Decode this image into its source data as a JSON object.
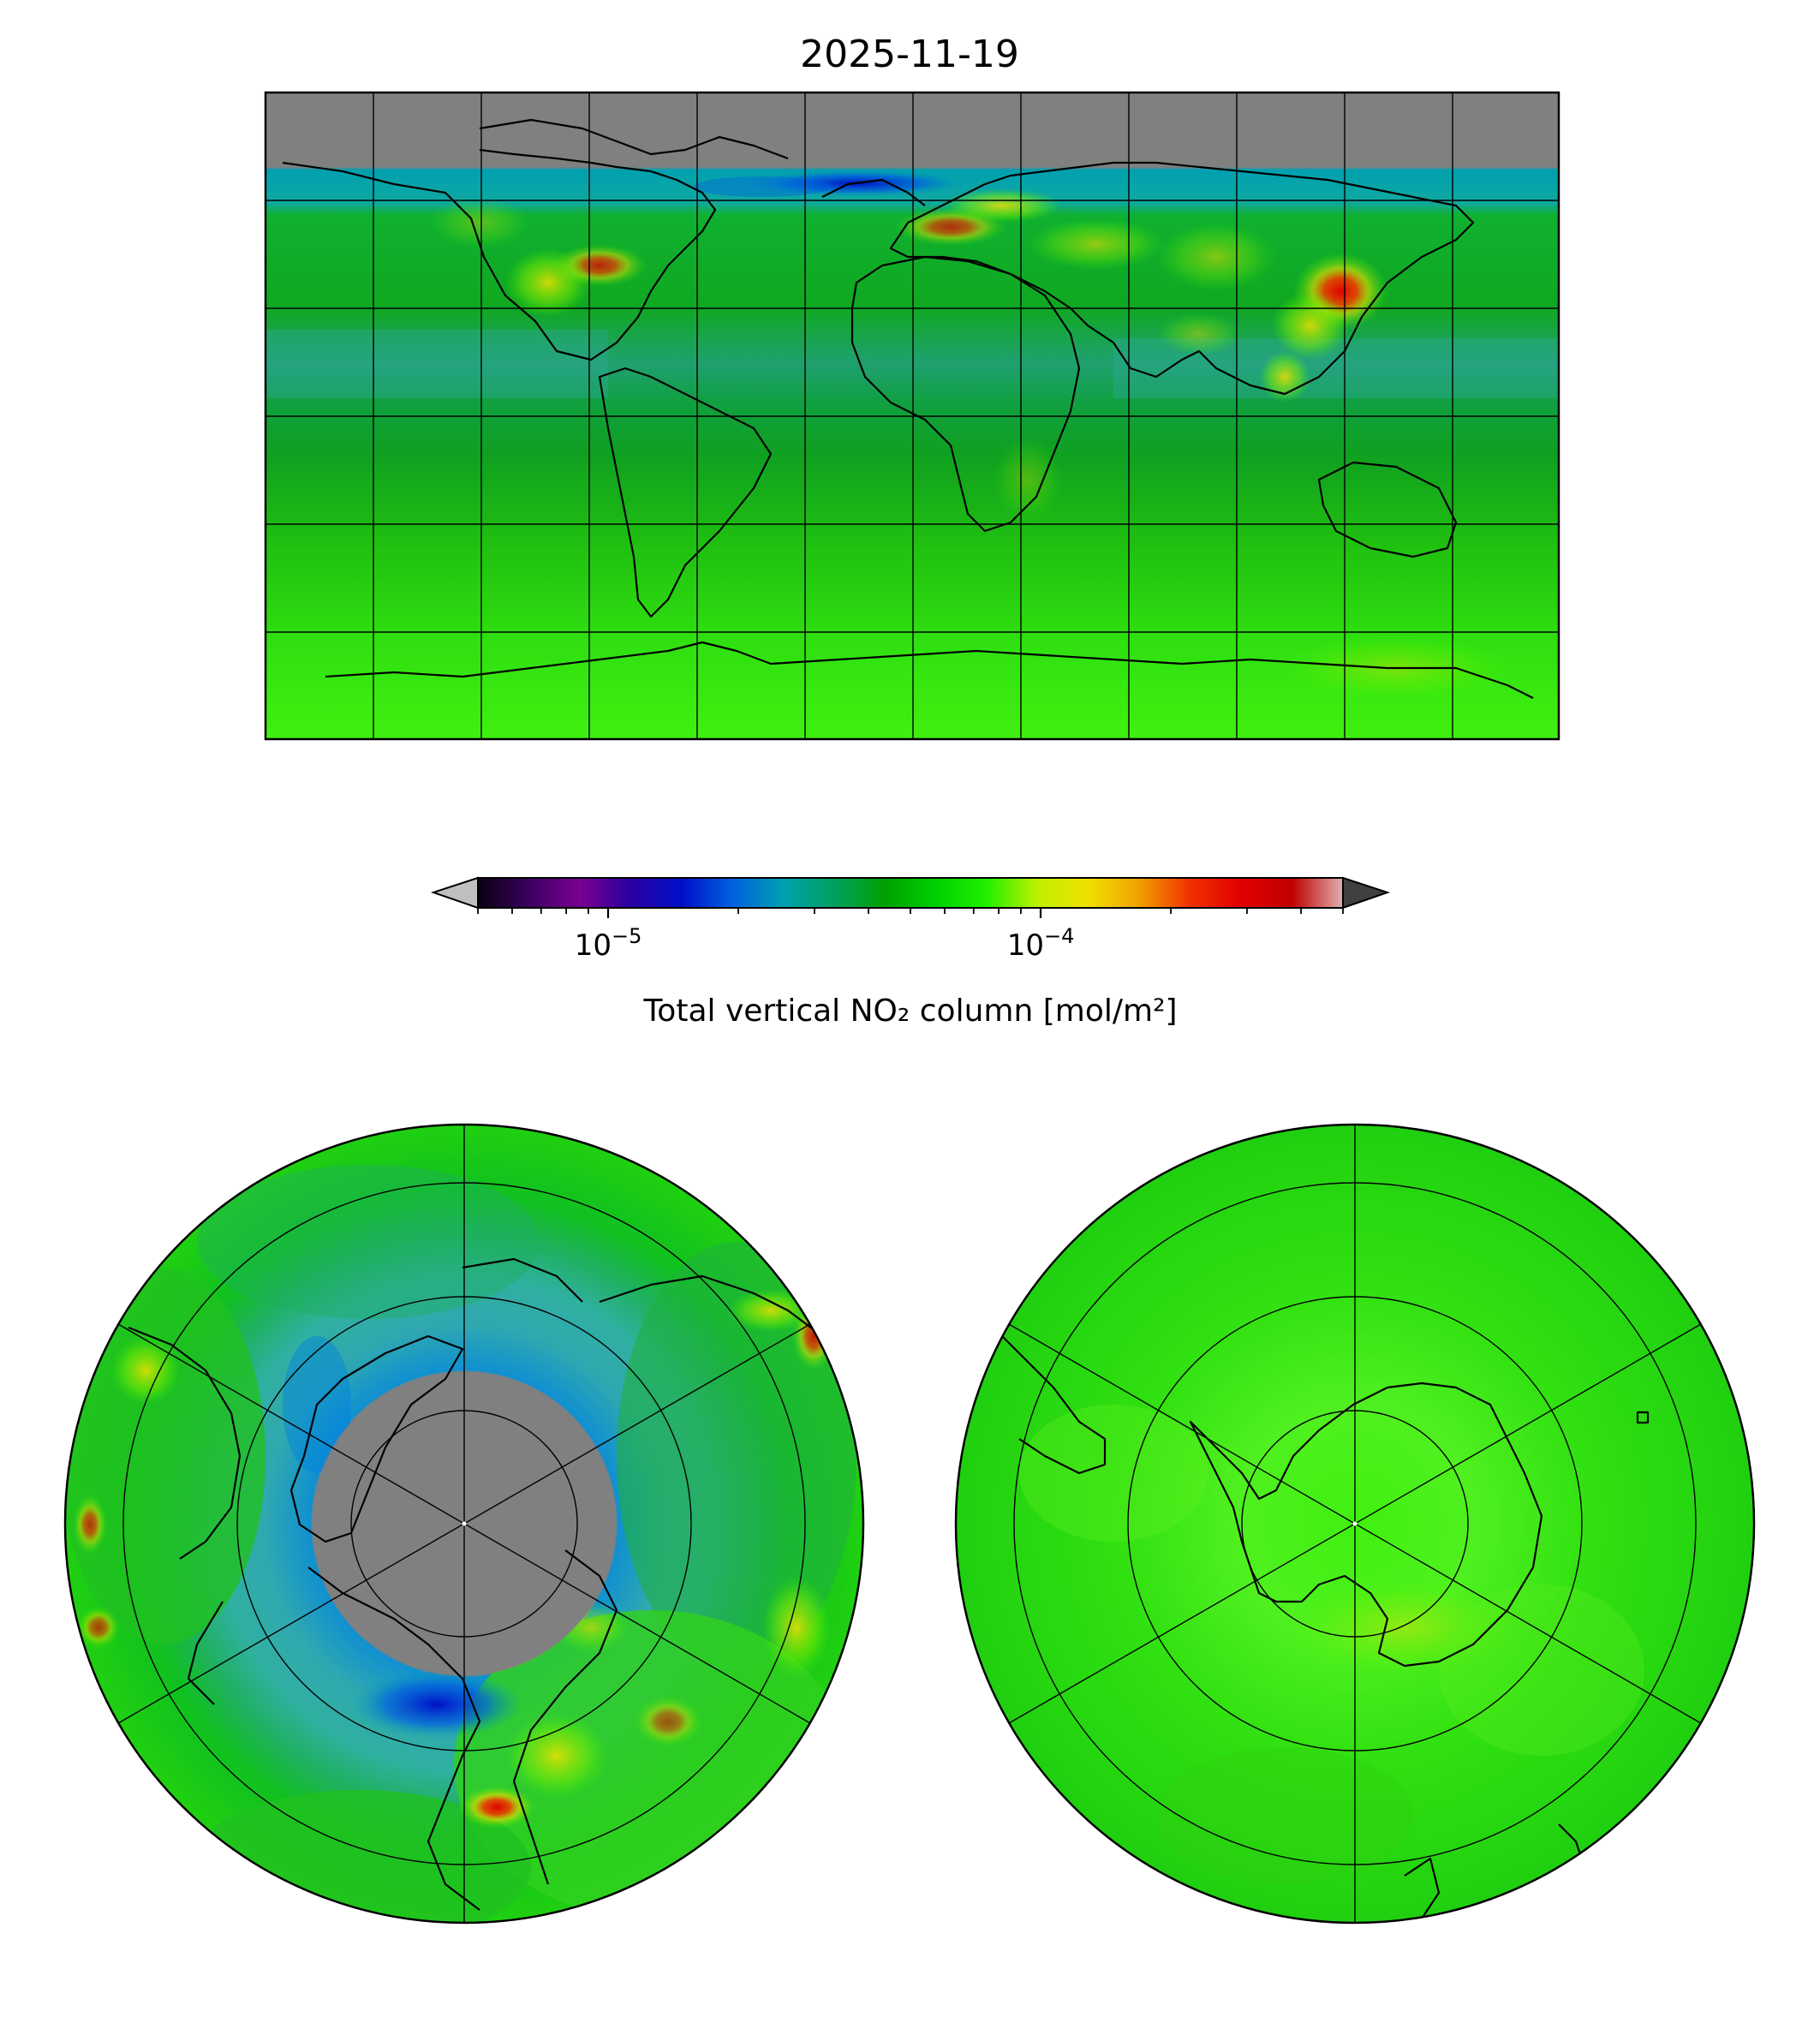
{
  "figure": {
    "title": "2025-11-19"
  },
  "colorbar": {
    "label": "Total vertical NO₂ column [mol/m²]",
    "scale": "log",
    "range": [
      5e-06,
      0.0005
    ],
    "tick_labels": [
      {
        "value": 1e-05,
        "base": "10",
        "exp": "−5"
      },
      {
        "value": 0.0001,
        "base": "10",
        "exp": "−4"
      }
    ],
    "extend": "both",
    "colors": [
      "#0a0010",
      "#3a0060",
      "#7a0090",
      "#2a00a0",
      "#0010c8",
      "#0060e0",
      "#00a0b0",
      "#00a060",
      "#00a000",
      "#00d000",
      "#20f000",
      "#c0f000",
      "#f0e000",
      "#f0a000",
      "#f03000",
      "#e00000",
      "#c00000",
      "#e0b0b0"
    ],
    "under_color": "#c0c0c0",
    "over_color": "#404040"
  },
  "maps": [
    {
      "name": "global",
      "projection": "plate-carree",
      "no_data_color": "#808080"
    },
    {
      "name": "north-polar",
      "projection": "north-polar-stereographic",
      "no_data_color": "#808080"
    },
    {
      "name": "south-polar",
      "projection": "south-polar-stereographic",
      "no_data_color": "#808080"
    }
  ]
}
